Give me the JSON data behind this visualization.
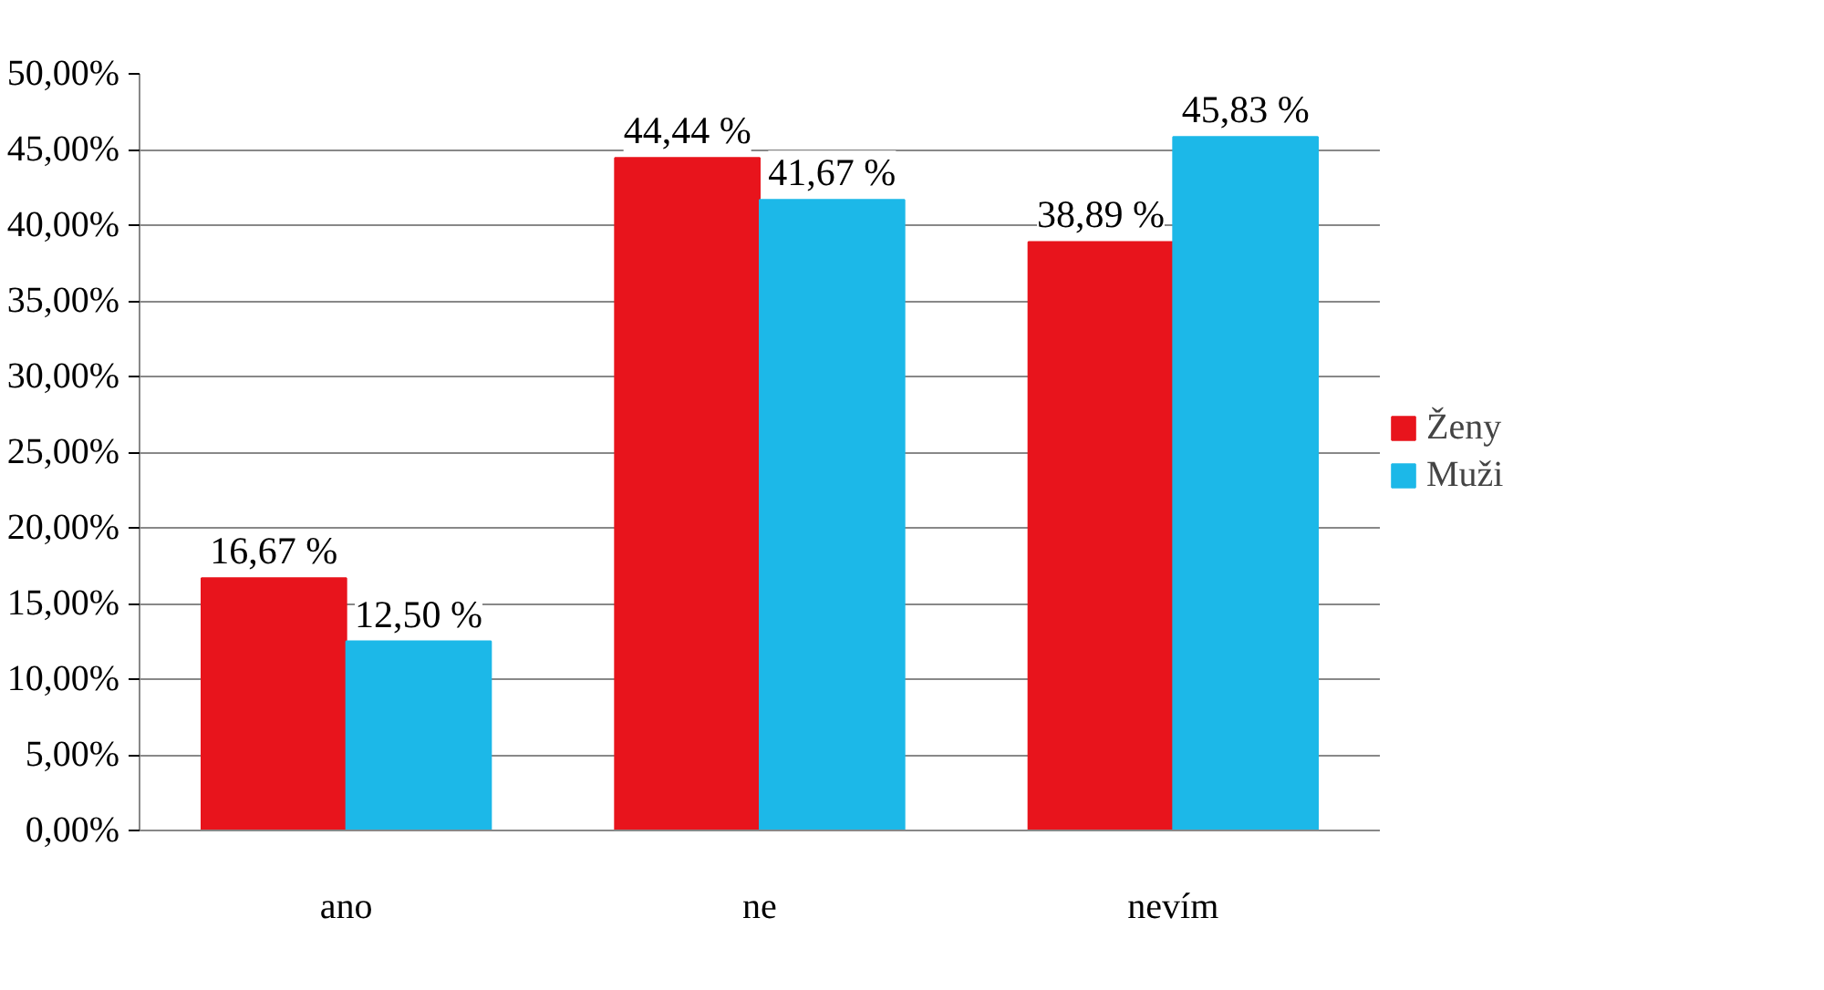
{
  "chart_data": {
    "type": "bar",
    "categories": [
      "ano",
      "ne",
      "nevím"
    ],
    "series": [
      {
        "name": "Ženy",
        "color": "#e8141c",
        "values": [
          16.67,
          44.44,
          38.89
        ],
        "value_labels": [
          "16,67 %",
          "44,44 %",
          "38,89 %"
        ]
      },
      {
        "name": "Muži",
        "color": "#1cb8e8",
        "values": [
          12.5,
          41.67,
          45.83
        ],
        "value_labels": [
          "12,50 %",
          "41,67 %",
          "45,83 %"
        ]
      }
    ],
    "ylim": [
      0,
      50
    ],
    "yticks": [
      {
        "value": 0,
        "label": "0,00%"
      },
      {
        "value": 5,
        "label": "5,00%"
      },
      {
        "value": 10,
        "label": "10,00%"
      },
      {
        "value": 15,
        "label": "15,00%"
      },
      {
        "value": 20,
        "label": "20,00%"
      },
      {
        "value": 25,
        "label": "25,00%"
      },
      {
        "value": 30,
        "label": "30,00%"
      },
      {
        "value": 35,
        "label": "35,00%"
      },
      {
        "value": 40,
        "label": "40,00%"
      },
      {
        "value": 45,
        "label": "45,00%"
      },
      {
        "value": 50,
        "label": "50,00%"
      }
    ],
    "grid": "y",
    "legend": "right"
  }
}
